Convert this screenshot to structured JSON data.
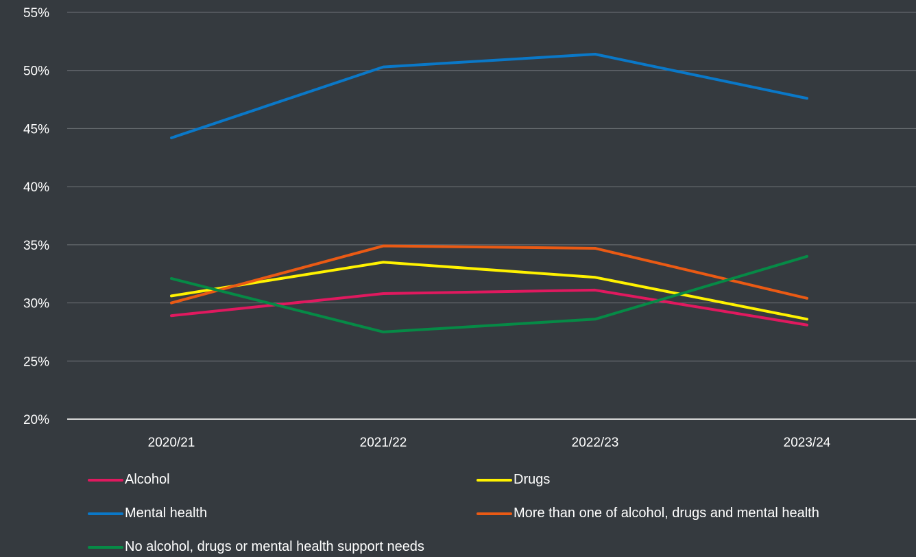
{
  "chart_data": {
    "type": "line",
    "categories": [
      "2020/21",
      "2021/22",
      "2022/23",
      "2023/24"
    ],
    "y_tick_labels": [
      "55%",
      "50%",
      "45%",
      "40%",
      "35%",
      "30%",
      "25%",
      "20%"
    ],
    "ylim": [
      20,
      55
    ],
    "y_unit": "%",
    "grid": true,
    "legend_position": "bottom",
    "series": [
      {
        "name": "Alcohol",
        "color": "#e0195f",
        "values": [
          28.9,
          30.8,
          31.1,
          28.1
        ]
      },
      {
        "name": "Drugs",
        "color": "#fff200",
        "values": [
          30.6,
          33.5,
          32.2,
          28.6
        ]
      },
      {
        "name": "Mental health",
        "color": "#0a78c8",
        "values": [
          44.2,
          50.3,
          51.4,
          47.6
        ]
      },
      {
        "name": "More than one of alcohol, drugs and mental health",
        "color": "#ea5a14",
        "values": [
          30.0,
          34.9,
          34.7,
          30.4
        ]
      },
      {
        "name": "No alcohol, drugs or mental health support needs",
        "color": "#068a46",
        "values": [
          32.1,
          27.5,
          28.6,
          34.0
        ]
      }
    ]
  }
}
